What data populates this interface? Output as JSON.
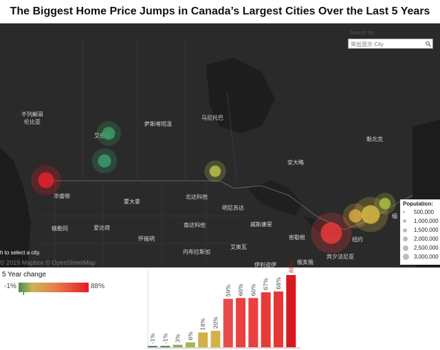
{
  "title": "The Biggest Home Price Jumps in Canada’s Largest Cities Over the Last 5 Years",
  "search": {
    "hint": "Search by",
    "placeholder": "突出显示 City"
  },
  "map": {
    "places": [
      {
        "id": "bc",
        "text": "不列颠哥\n伦比亚"
      },
      {
        "id": "edmonton",
        "text": "艾伯塔"
      },
      {
        "id": "sask",
        "text": "萨斯喀彻温"
      },
      {
        "id": "manitoba",
        "text": "马尼托巴"
      },
      {
        "id": "quebec",
        "text": "魁北克"
      },
      {
        "id": "ontario",
        "text": "安大略"
      },
      {
        "id": "washington",
        "text": "华盛顿"
      },
      {
        "id": "montana",
        "text": "蒙大拿"
      },
      {
        "id": "nd",
        "text": "北达科他"
      },
      {
        "id": "minnesota",
        "text": "明尼苏达"
      },
      {
        "id": "oregon",
        "text": "俄勒冈"
      },
      {
        "id": "idaho",
        "text": "爱达荷"
      },
      {
        "id": "sd",
        "text": "南达科他"
      },
      {
        "id": "wisconsin",
        "text": "威斯康星"
      },
      {
        "id": "michigan",
        "text": "密歇根"
      },
      {
        "id": "newyork",
        "text": "纽约"
      },
      {
        "id": "wyoming",
        "text": "怀俄明"
      },
      {
        "id": "iowa",
        "text": "艾奥瓦"
      },
      {
        "id": "nebraska",
        "text": "内布拉斯加"
      },
      {
        "id": "penn",
        "text": "宾夕法尼亚"
      },
      {
        "id": "illinois",
        "text": "伊利诺伊"
      },
      {
        "id": "ohio",
        "text": "俄亥俄"
      },
      {
        "id": "maine",
        "text": "缅"
      }
    ],
    "hint": "h to select a city.",
    "credit": "© 2019 Mapbox © OpenStreetMap",
    "cities": [
      {
        "id": "vancouver",
        "change": 88,
        "population": 2500000,
        "color": "#e8212b"
      },
      {
        "id": "edmonton",
        "change": -1,
        "population": 1300000,
        "color": "#3c9a63"
      },
      {
        "id": "calgary",
        "change": -1,
        "population": 1400000,
        "color": "#3c9a70"
      },
      {
        "id": "winnipeg",
        "change": 20,
        "population": 800000,
        "color": "#b9c04a"
      },
      {
        "id": "toronto",
        "change": 67,
        "population": 6000000,
        "color": "#ea3a3a"
      },
      {
        "id": "ottawa",
        "change": 18,
        "population": 1400000,
        "color": "#d9a53f"
      },
      {
        "id": "montreal",
        "change": 20,
        "population": 4000000,
        "color": "#d8b843"
      },
      {
        "id": "quebec-city",
        "change": 6,
        "population": 800000,
        "color": "#aac040"
      }
    ]
  },
  "pop_legend": {
    "title": "Population:",
    "items": [
      "500,000",
      "1,000,000",
      "1,500,000",
      "2,000,000",
      "2,500,000",
      "3,000,000"
    ]
  },
  "color_legend": {
    "title": "5 Year change",
    "min": "-1%",
    "max": "88%"
  },
  "chart_data": {
    "type": "bar",
    "values": [
      -1,
      -1,
      3,
      6,
      18,
      20,
      59,
      60,
      60,
      67,
      68,
      88
    ],
    "labels": [
      "-1%",
      "-1%",
      "3%",
      "6%",
      "18%",
      "20%",
      "59%",
      "60%",
      "60%",
      "67%",
      "68%",
      "88%"
    ],
    "colors": [
      "#4e8a5a",
      "#4e8a5a",
      "#8fae4f",
      "#a8b64e",
      "#d1b04a",
      "#d4b24a",
      "#ea4a4a",
      "#ea4040",
      "#ea4040",
      "#e93a3a",
      "#e83636",
      "#d81a20"
    ]
  }
}
